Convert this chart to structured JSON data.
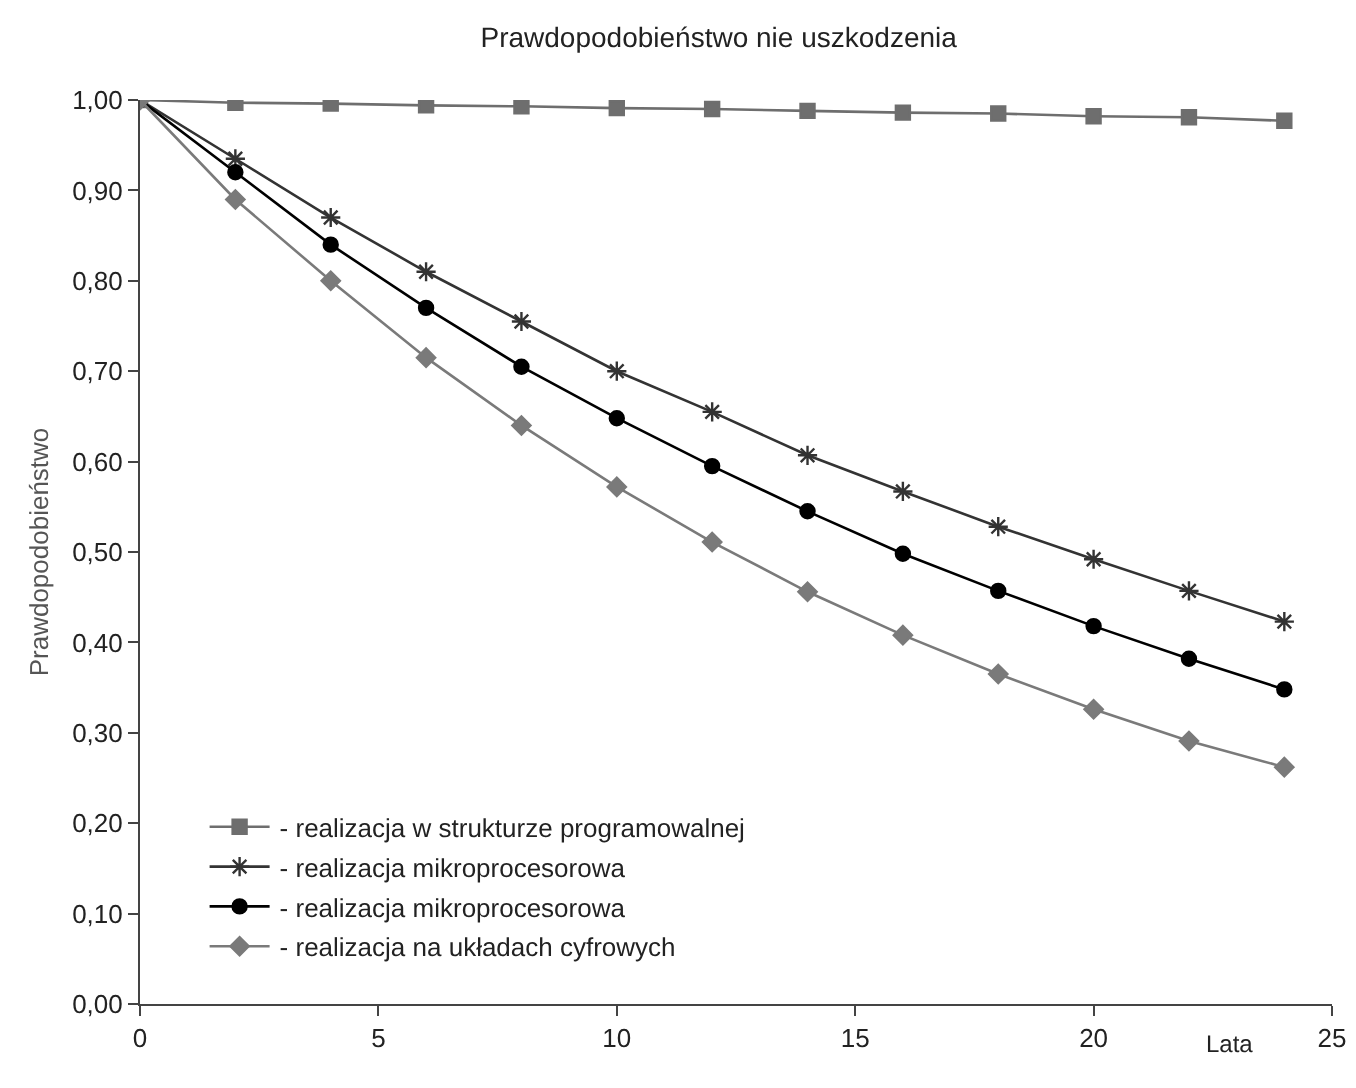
{
  "chart_data": {
    "type": "line",
    "title": "Prawdopodobieństwo nie uszkodzenia",
    "xlabel": "Lata",
    "ylabel": "Prawdopodobieństwo",
    "x": [
      0,
      2,
      4,
      6,
      8,
      10,
      12,
      14,
      16,
      18,
      20,
      22,
      24
    ],
    "series": [
      {
        "name": "- realizacja w strukturze programowalnej",
        "color": "#6e6e6e",
        "marker": "square",
        "values": [
          1.0,
          0.997,
          0.996,
          0.994,
          0.993,
          0.991,
          0.99,
          0.988,
          0.986,
          0.985,
          0.982,
          0.981,
          0.977
        ]
      },
      {
        "name": "- realizacja mikroprocesorowa",
        "color": "#333333",
        "marker": "cross",
        "values": [
          1.0,
          0.935,
          0.87,
          0.81,
          0.755,
          0.7,
          0.655,
          0.607,
          0.567,
          0.528,
          0.492,
          0.457,
          0.423
        ]
      },
      {
        "name": "- realizacja mikroprocesorowa",
        "color": "#000000",
        "marker": "circle",
        "values": [
          1.0,
          0.92,
          0.84,
          0.77,
          0.705,
          0.648,
          0.595,
          0.545,
          0.498,
          0.457,
          0.418,
          0.382,
          0.348
        ]
      },
      {
        "name": "- realizacja na układach cyfrowych",
        "color": "#7a7a7a",
        "marker": "diamond",
        "values": [
          1.0,
          0.89,
          0.8,
          0.715,
          0.64,
          0.572,
          0.511,
          0.456,
          0.408,
          0.365,
          0.326,
          0.291,
          0.262
        ]
      }
    ],
    "xlim": [
      0,
      25
    ],
    "xticks": [
      0,
      5,
      10,
      15,
      20,
      25
    ],
    "ylim": [
      0,
      1
    ],
    "yticks": [
      {
        "value": 0,
        "label": "0,00"
      },
      {
        "value": 0.1,
        "label": "0,10"
      },
      {
        "value": 0.2,
        "label": "0,20"
      },
      {
        "value": 0.3,
        "label": "0,30"
      },
      {
        "value": 0.4,
        "label": "0,40"
      },
      {
        "value": 0.5,
        "label": "0,50"
      },
      {
        "value": 0.6,
        "label": "0,60"
      },
      {
        "value": 0.7,
        "label": "0,70"
      },
      {
        "value": 0.8,
        "label": "0,80"
      },
      {
        "value": 0.9,
        "label": "0,90"
      },
      {
        "value": 1,
        "label": "1,00"
      }
    ],
    "grid": false,
    "legend": "bottom left",
    "line_style": "solid"
  }
}
